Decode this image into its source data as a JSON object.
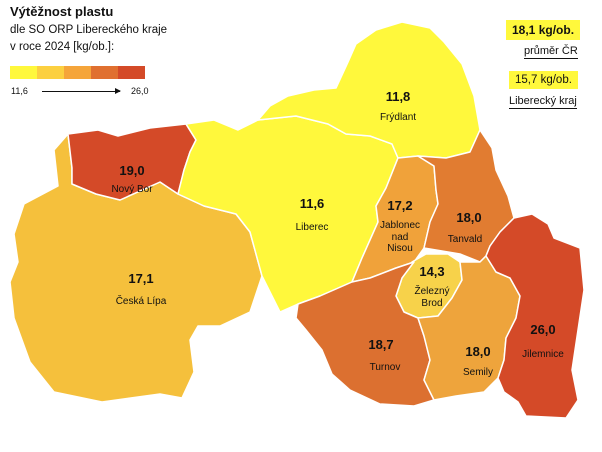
{
  "header": {
    "title": "Výtěžnost plastu",
    "line1": "dle SO ORP Libereckého kraje",
    "line2": "v roce 2024 [kg/ob.]:"
  },
  "scale": {
    "min_label": "11,6",
    "max_label": "26,0",
    "colors": [
      "#fff83c",
      "#fcd040",
      "#f5a53a",
      "#e07030",
      "#d44a28"
    ]
  },
  "reference": {
    "czech_value": "18,1 kg/ob.",
    "czech_label": "průměr ČR",
    "region_value": "15,7 kg/ob.",
    "region_label": "Liberecký kraj"
  },
  "regions": [
    {
      "key": "frydlant",
      "value": "11,8",
      "name": "Frýdlant",
      "color": "#fff83c"
    },
    {
      "key": "liberec",
      "value": "11,6",
      "name": "Liberec",
      "color": "#fff83c"
    },
    {
      "key": "novy-bor",
      "value": "19,0",
      "name": "Nový Bor",
      "color": "#d44a28"
    },
    {
      "key": "ceska-lipa",
      "value": "17,1",
      "name": "Česká Lípa",
      "color": "#f5c03c"
    },
    {
      "key": "jablonec",
      "value": "17,2",
      "name": "Jablonec\nnad\nNisou",
      "color": "#f0a23a"
    },
    {
      "key": "tanvald",
      "value": "18,0",
      "name": "Tanvald",
      "color": "#e17c31"
    },
    {
      "key": "zelezny-brod",
      "value": "14,3",
      "name": "Železný\nBrod",
      "color": "#f7d24a"
    },
    {
      "key": "turnov",
      "value": "18,7",
      "name": "Turnov",
      "color": "#dc7030"
    },
    {
      "key": "semily",
      "value": "18,0",
      "name": "Semily",
      "color": "#eea43c"
    },
    {
      "key": "jilemnice",
      "value": "26,0",
      "name": "Jilemnice",
      "color": "#d44a28"
    }
  ]
}
